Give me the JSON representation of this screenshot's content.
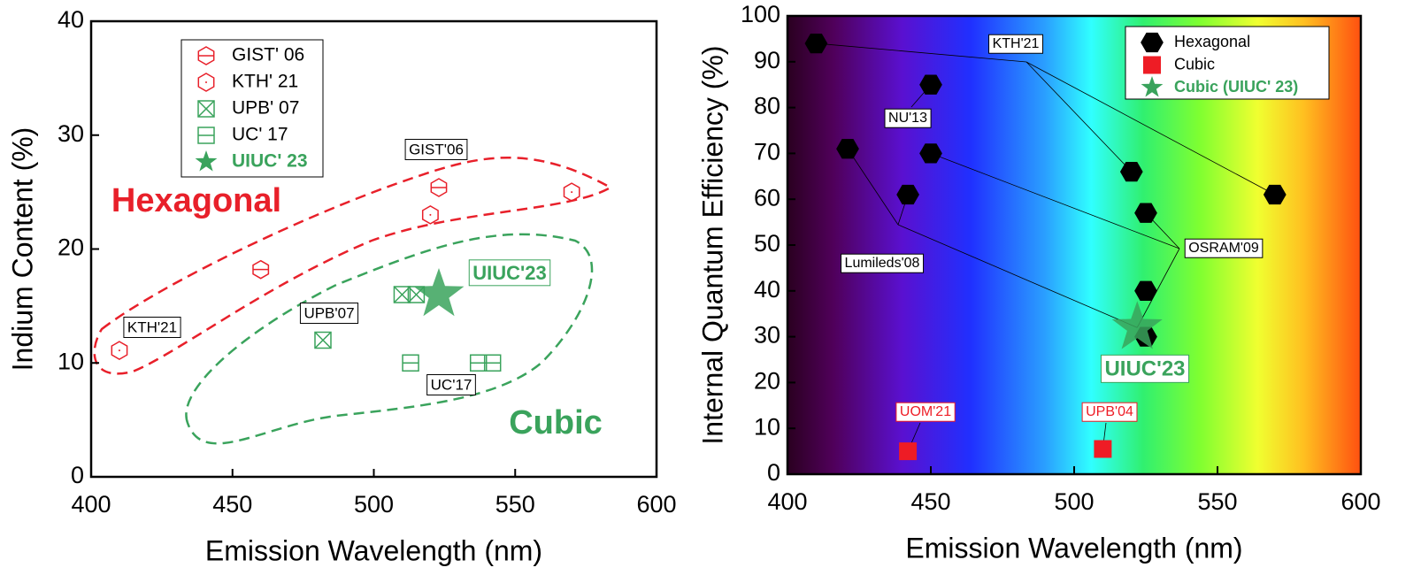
{
  "chart_data": [
    {
      "type": "scatter",
      "xlabel": "Emission Wavelength (nm)",
      "ylabel": "Indium Content (%)",
      "xlim": [
        400,
        600
      ],
      "ylim": [
        0,
        40
      ],
      "xticks": [
        400,
        450,
        500,
        550,
        600
      ],
      "yticks": [
        0,
        10,
        20,
        30,
        40
      ],
      "series": [
        {
          "name": "GIST' 06",
          "color": "#e8202a",
          "marker": "hexagon-line",
          "x": [
            460,
            523
          ],
          "values": [
            18.2,
            25.4
          ]
        },
        {
          "name": "KTH' 21",
          "color": "#e8202a",
          "marker": "hexagon-dot",
          "x": [
            410,
            520,
            570
          ],
          "values": [
            11.1,
            23,
            25
          ]
        },
        {
          "name": "UPB' 07",
          "color": "#3aa35c",
          "marker": "square-x",
          "x": [
            482,
            510,
            515
          ],
          "values": [
            12,
            16,
            16
          ]
        },
        {
          "name": "UC' 17",
          "color": "#3aa35c",
          "marker": "square-line",
          "x": [
            513,
            537,
            542
          ],
          "values": [
            10,
            10,
            10
          ]
        },
        {
          "name": "UIUC' 23",
          "color": "#3aa35c",
          "marker": "star",
          "x": [
            523
          ],
          "values": [
            16
          ]
        }
      ],
      "annotations": [
        {
          "text": "Hexagonal",
          "color": "#e8202a",
          "boxed": false
        },
        {
          "text": "Cubic",
          "color": "#3aa35c",
          "boxed": false
        },
        {
          "text": "GIST'06",
          "color": "#000000",
          "boxed": true
        },
        {
          "text": "KTH'21",
          "color": "#000000",
          "boxed": true
        },
        {
          "text": "UPB'07",
          "color": "#000000",
          "boxed": true
        },
        {
          "text": "UC'17",
          "color": "#000000",
          "boxed": true
        },
        {
          "text": "UIUC'23",
          "color": "#3aa35c",
          "boxed": true
        }
      ]
    },
    {
      "type": "scatter",
      "xlabel": "Emission Wavelength (nm)",
      "ylabel": "Internal Quantum Efficiency (%)",
      "xlim": [
        400,
        600
      ],
      "ylim": [
        0,
        100
      ],
      "xticks": [
        400,
        450,
        500,
        550,
        600
      ],
      "yticks": [
        0,
        10,
        20,
        30,
        40,
        50,
        60,
        70,
        80,
        90,
        100
      ],
      "series": [
        {
          "name": "Hexagonal",
          "color": "#000000",
          "marker": "hexagon",
          "x": [
            410,
            450,
            421,
            450,
            442,
            520,
            570,
            525,
            525,
            525
          ],
          "values": [
            94,
            85,
            71,
            70,
            61,
            66,
            61,
            57,
            40,
            30
          ]
        },
        {
          "name": "Cubic",
          "color": "#ee1c25",
          "marker": "square",
          "x": [
            442,
            510
          ],
          "values": [
            5,
            5.5
          ]
        },
        {
          "name": "Cubic (UIUC' 23)",
          "color": "#3aa35c",
          "marker": "star",
          "x": [
            522
          ],
          "values": [
            32
          ]
        }
      ],
      "annotations": [
        {
          "text": "KTH'21",
          "color": "#000000",
          "boxed": true
        },
        {
          "text": "NU'13",
          "color": "#000000",
          "boxed": true
        },
        {
          "text": "Lumileds'08",
          "color": "#000000",
          "boxed": true
        },
        {
          "text": "OSRAM'09",
          "color": "#000000",
          "boxed": true
        },
        {
          "text": "UIUC'23",
          "color": "#3aa35c",
          "boxed": true
        },
        {
          "text": "UOM'21",
          "color": "#ee1c25",
          "boxed": true
        },
        {
          "text": "UPB'04",
          "color": "#ee1c25",
          "boxed": true
        }
      ]
    }
  ]
}
